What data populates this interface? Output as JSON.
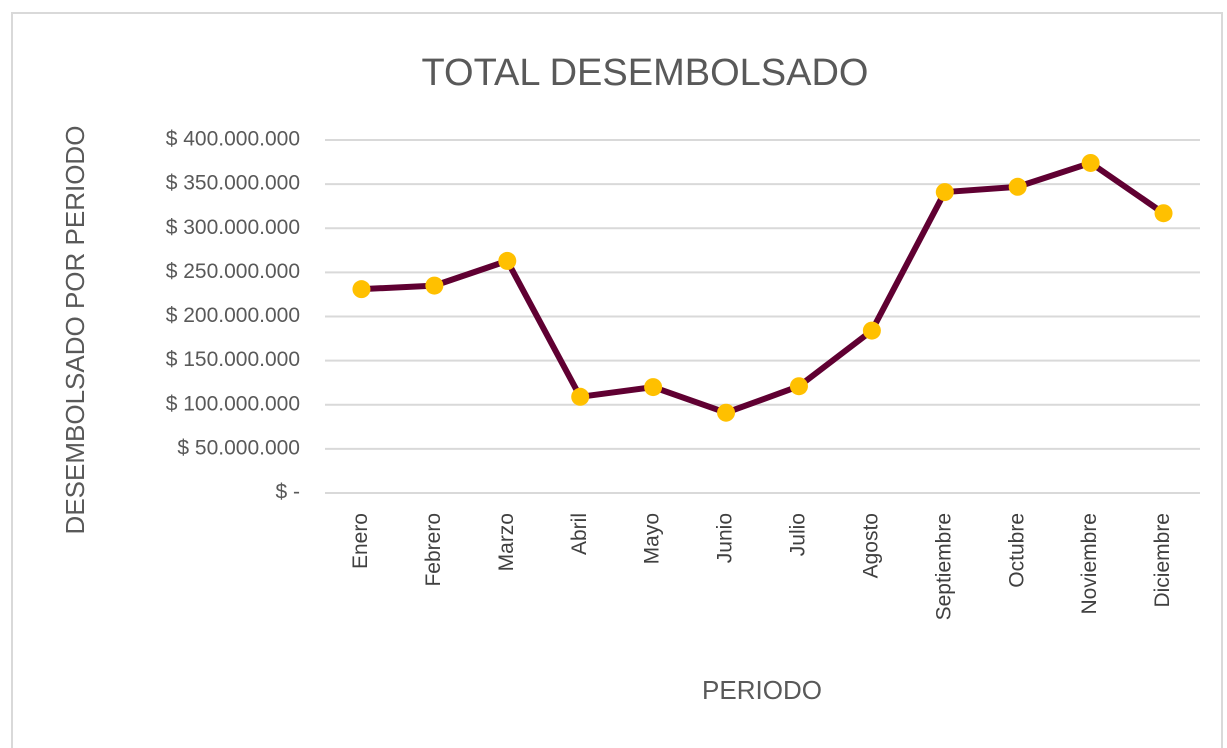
{
  "chart_data": {
    "type": "line",
    "title": "TOTAL DESEMBOLSADO",
    "x_label": "PERIODO",
    "y_label": "DESEMBOLSADO POR PERIODO",
    "categories": [
      "Enero",
      "Febrero",
      "Marzo",
      "Abril",
      "Mayo",
      "Junio",
      "Julio",
      "Agosto",
      "Septiembre",
      "Octubre",
      "Noviembre",
      "Diciembre"
    ],
    "series": [
      {
        "name": "Total desembolsado",
        "color": "#600032",
        "marker_color": "#ffc000",
        "values": [
          231000000,
          235000000,
          263000000,
          109000000,
          120000000,
          91000000,
          121000000,
          184000000,
          341000000,
          347000000,
          374000000,
          317000000
        ]
      }
    ],
    "ylim": [
      0,
      400000000
    ],
    "yticks": [
      {
        "value": 0,
        "label": "$ -"
      },
      {
        "value": 50000000,
        "label": "$ 50.000.000"
      },
      {
        "value": 100000000,
        "label": "$ 100.000.000"
      },
      {
        "value": 150000000,
        "label": "$ 150.000.000"
      },
      {
        "value": 200000000,
        "label": "$ 200.000.000"
      },
      {
        "value": 250000000,
        "label": "$ 250.000.000"
      },
      {
        "value": 300000000,
        "label": "$ 300.000.000"
      },
      {
        "value": 350000000,
        "label": "$ 350.000.000"
      },
      {
        "value": 400000000,
        "label": "$ 400.000.000"
      }
    ],
    "grid": true
  }
}
